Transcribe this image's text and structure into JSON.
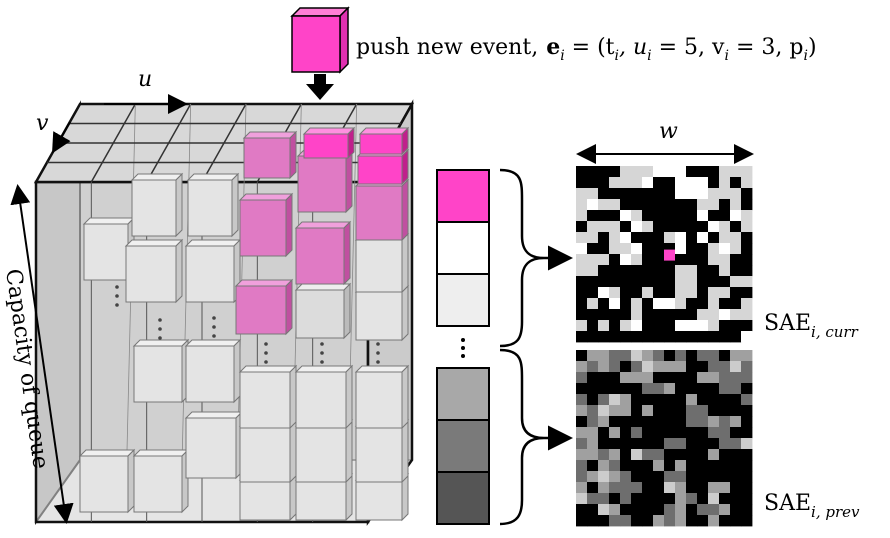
{
  "labels": {
    "push": "push new event,",
    "u_axis": "u",
    "v_axis": "v",
    "w_axis": "w",
    "capacity": "Capacity of queue",
    "sae_curr": "SAE",
    "sae_curr_sub": "i, curr",
    "sae_prev": "SAE",
    "sae_prev_sub": "i, prev"
  },
  "equation": {
    "bold_e": "e",
    "sub_i": "i",
    "rest": " = (t",
    "t_sub": "i",
    "u_part": ", u",
    "u_sub": "i",
    "u_val": " = 5, v",
    "v_sub": "i",
    "v_val": " = 3, p",
    "p_sub": "i",
    "close": ")"
  },
  "queue_colors": [
    "#ff44c8",
    "#ffffff",
    "#eeeeee",
    "#a8a8a8",
    "#7a7a7a",
    "#555555"
  ],
  "colors": {
    "event": "#ff44c8",
    "event_soft": "#e07ac4",
    "grid_bg": "#c9c9c9"
  },
  "sae_curr_grid": [
    "0000222111000222",
    "0002221001110202",
    "2200000001112220",
    "2122000000022020",
    "2000120000010012",
    "0222012000001202",
    "2202100021010220",
    "1002210001002120",
    "2220120000002200",
    "2200000002200200",
    "0000000002200022",
    "0012002002202200",
    "0201020112002002",
    "0000020000022122",
    "2020210001112000",
    "0000000000000001"
  ],
  "sae_prev_grid": [
    "0221132101011022",
    "2121013222001131",
    "1000222000022111",
    "0000001120000110",
    "1013200000200001",
    "2132202000110000",
    "0120000000112120",
    "2202010000001100",
    "1200000011000113",
    "2212031100002000",
    "1021000202000000",
    "1232100011000000",
    "2021110032002200",
    "3110100002103000",
    "0032000012011200",
    "0001100212002000"
  ]
}
